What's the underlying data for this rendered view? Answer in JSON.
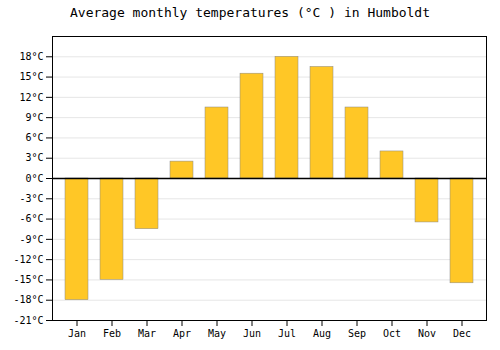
{
  "chart_data": {
    "type": "bar",
    "title": "Average monthly temperatures (°C ) in Humboldt",
    "categories": [
      "Jan",
      "Feb",
      "Mar",
      "Apr",
      "May",
      "Jun",
      "Jul",
      "Aug",
      "Sep",
      "Oct",
      "Nov",
      "Dec"
    ],
    "values": [
      -18,
      -15,
      -7.5,
      2.5,
      10.5,
      15.5,
      18,
      16.5,
      10.5,
      4,
      -6.5,
      -15.5
    ],
    "color": "#FFC726",
    "ylim": [
      -21,
      21
    ],
    "yticks": [
      {
        "value": -21,
        "label": "-21°C"
      },
      {
        "value": -18,
        "label": "-18°C"
      },
      {
        "value": -15,
        "label": "-15°C"
      },
      {
        "value": -12,
        "label": "-12°C"
      },
      {
        "value": -9,
        "label": "-9°C"
      },
      {
        "value": -6,
        "label": "-6°C"
      },
      {
        "value": -3,
        "label": "-3°C"
      },
      {
        "value": 0,
        "label": "0°C"
      },
      {
        "value": 3,
        "label": "3°C"
      },
      {
        "value": 6,
        "label": "6°C"
      },
      {
        "value": 9,
        "label": "9°C"
      },
      {
        "value": 12,
        "label": "12°C"
      },
      {
        "value": 15,
        "label": "15°C"
      },
      {
        "value": 18,
        "label": "18°C"
      }
    ],
    "grid": true
  }
}
